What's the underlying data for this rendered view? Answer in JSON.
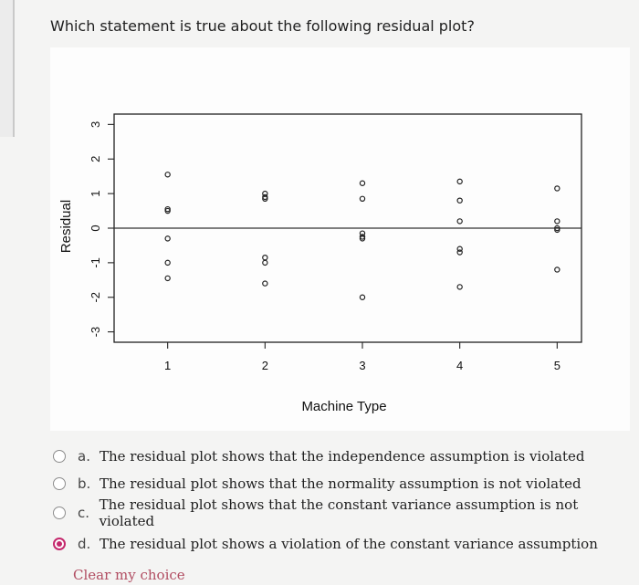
{
  "question": "Which statement is true about the following residual plot?",
  "chart_data": {
    "type": "scatter",
    "xlabel": "Machine Type",
    "ylabel": "Residual",
    "x_ticks": [
      "1",
      "2",
      "3",
      "4",
      "5"
    ],
    "y_ticks": [
      "-3",
      "-2",
      "-1",
      "0",
      "1",
      "2",
      "3"
    ],
    "xlim": [
      0.45,
      5.25
    ],
    "ylim": [
      -3.3,
      3.3
    ],
    "reference_line_y": 0,
    "grid": false,
    "points": [
      {
        "x": 1,
        "y": 1.55
      },
      {
        "x": 1,
        "y": 0.55
      },
      {
        "x": 1,
        "y": 0.5
      },
      {
        "x": 1,
        "y": -0.3
      },
      {
        "x": 1,
        "y": -1.0
      },
      {
        "x": 1,
        "y": -1.45
      },
      {
        "x": 2,
        "y": 1.0
      },
      {
        "x": 2,
        "y": 0.9
      },
      {
        "x": 2,
        "y": 0.85
      },
      {
        "x": 2,
        "y": -0.85
      },
      {
        "x": 2,
        "y": -1.0
      },
      {
        "x": 2,
        "y": -1.6
      },
      {
        "x": 3,
        "y": 1.3
      },
      {
        "x": 3,
        "y": 0.85
      },
      {
        "x": 3,
        "y": -0.15
      },
      {
        "x": 3,
        "y": -0.25
      },
      {
        "x": 3,
        "y": -0.3
      },
      {
        "x": 3,
        "y": -2.0
      },
      {
        "x": 4,
        "y": 1.35
      },
      {
        "x": 4,
        "y": 0.8
      },
      {
        "x": 4,
        "y": 0.2
      },
      {
        "x": 4,
        "y": -0.6
      },
      {
        "x": 4,
        "y": -0.7
      },
      {
        "x": 4,
        "y": -1.7
      },
      {
        "x": 5,
        "y": 1.15
      },
      {
        "x": 5,
        "y": 0.2
      },
      {
        "x": 5,
        "y": 0.0
      },
      {
        "x": 5,
        "y": -0.05
      },
      {
        "x": 5,
        "y": -1.2
      }
    ]
  },
  "options": [
    {
      "letter": "a.",
      "text": "The residual plot shows that the independence assumption is violated",
      "selected": false
    },
    {
      "letter": "b.",
      "text": "The residual plot shows that the normality assumption is not violated",
      "selected": false
    },
    {
      "letter": "c.",
      "text": "The residual plot shows that the constant variance assumption is not violated",
      "selected": false
    },
    {
      "letter": "d.",
      "text": "The residual plot shows a violation of the constant variance assumption",
      "selected": true
    }
  ],
  "clear_label": "Clear my choice",
  "colors": {
    "accent": "#c4286c",
    "link": "#b14d62"
  }
}
